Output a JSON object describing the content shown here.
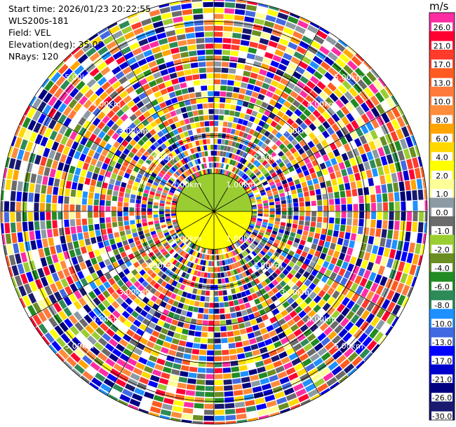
{
  "header": {
    "start_time": "Start time: 2026/01/23 20:22:55",
    "instrument": "WLS200s-181",
    "field": "Field: VEL",
    "elevation": "Elevation(deg): 35.00",
    "nrays": "NRays: 120"
  },
  "colorbar": {
    "unit": "m/s",
    "bins": [
      {
        "label": "26.0",
        "color": "#ff2da3"
      },
      {
        "label": "21.0",
        "color": "#ff0033"
      },
      {
        "label": "17.0",
        "color": "#ff3b2b"
      },
      {
        "label": "13.0",
        "color": "#ff5a1f"
      },
      {
        "label": "10.0",
        "color": "#ff7a3a"
      },
      {
        "label": "8.0",
        "color": "#ff8c3a"
      },
      {
        "label": "6.0",
        "color": "#ffa400"
      },
      {
        "label": "4.0",
        "color": "#ffd800"
      },
      {
        "label": "2.0",
        "color": "#ffff00"
      },
      {
        "label": "1.0",
        "color": "#ffff99"
      },
      {
        "label": "0.0",
        "color": "#8c9aa3"
      },
      {
        "label": "-1.0",
        "color": "#6b6b6b"
      },
      {
        "label": "-2.0",
        "color": "#9acd32"
      },
      {
        "label": "-4.0",
        "color": "#6b8e23"
      },
      {
        "label": "-6.0",
        "color": "#228b22"
      },
      {
        "label": "-8.0",
        "color": "#2e8b57"
      },
      {
        "label": "-10.0",
        "color": "#1e90ff"
      },
      {
        "label": "-13.0",
        "color": "#4169e1"
      },
      {
        "label": "-17.0",
        "color": "#0000ff"
      },
      {
        "label": "-21.0",
        "color": "#0000cd"
      },
      {
        "label": "-26.0",
        "color": "#000080"
      },
      {
        "label": "-30.0",
        "color": "#191970"
      }
    ]
  },
  "chart_data": {
    "type": "heatmap",
    "projection": "polar-ppi",
    "field": "VEL",
    "unit": "m/s",
    "nrays": 120,
    "range_rings_km": [
      1,
      2,
      3,
      4,
      5
    ],
    "ring_labels": [
      "1.00km",
      "2.00km",
      "3.00km",
      "4.00km",
      "5.00km"
    ],
    "max_range_km": 5.6,
    "inner_region_km": 1.0,
    "inner_region_colors": [
      "#9acd32",
      "#ffff00"
    ],
    "grid": true
  }
}
